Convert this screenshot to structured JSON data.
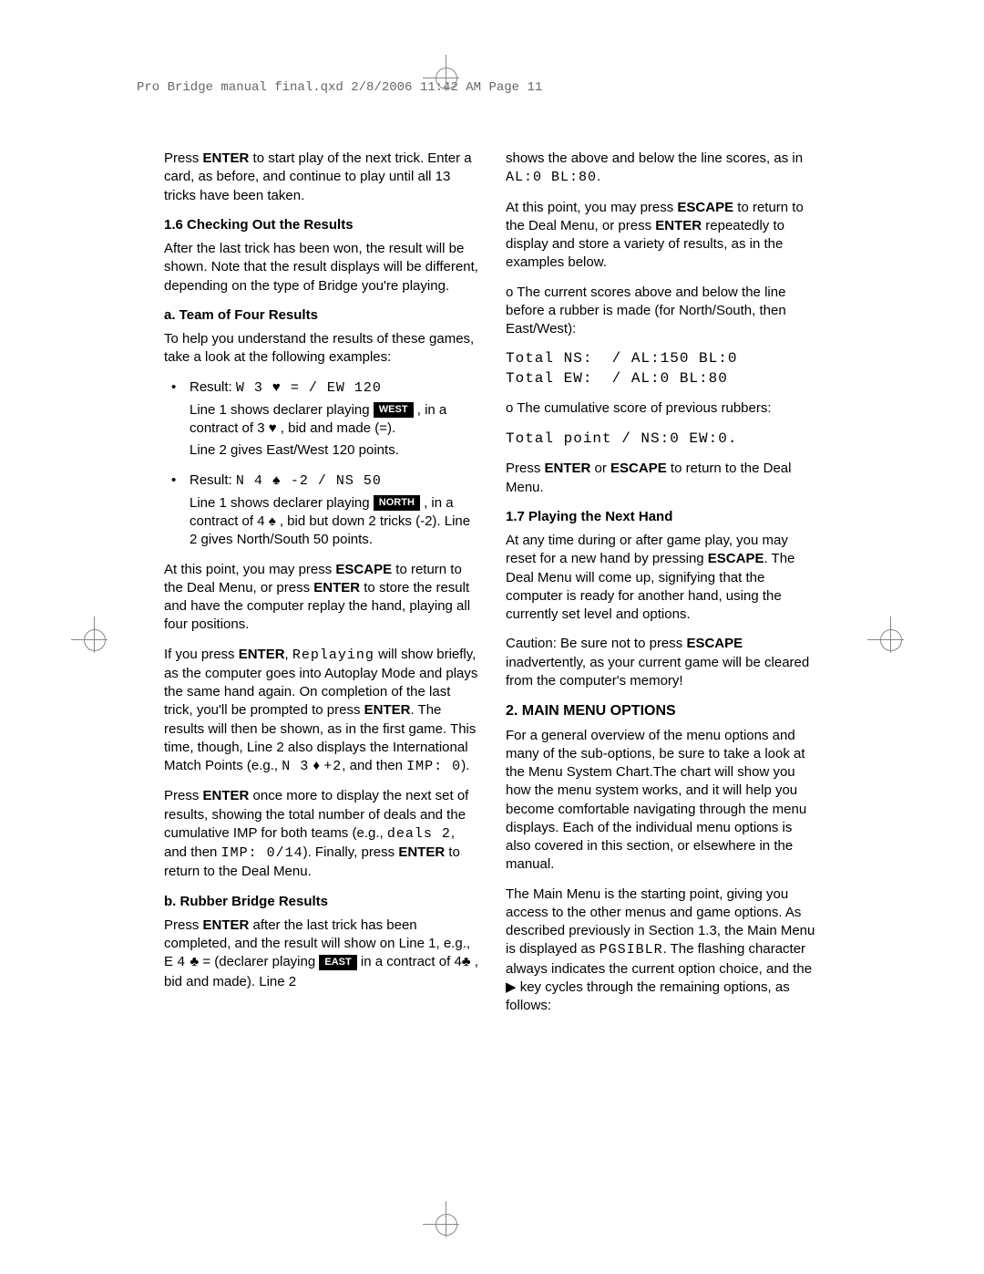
{
  "header": {
    "text": "Pro Bridge manual final.qxd  2/8/2006  11:42 AM  Page 11"
  },
  "left_column": {
    "intro": {
      "pre1": "Press ",
      "key1": "ENTER",
      "post1": " to start play of the next trick. Enter a card, as before, and continue to play until all 13 tricks have been taken."
    },
    "sec16_title": "1.6 Checking Out the Results",
    "sec16_p": "After the last trick has been won, the result will be shown. Note that the result displays will be different, depending on the type of Bridge you're playing.",
    "team_title": "a. Team of Four Results",
    "team_p": "To help you understand the results of these games, take a look at the following examples:",
    "bullet1": {
      "label": "Result: ",
      "lcd": "W 3 ♥ = / EW 120",
      "line1a": "Line 1 shows declarer playing ",
      "badge": "WEST",
      "line1b": " , in a contract of 3 ♥ , bid and made (=).",
      "line2": "Line 2 gives East/West 120 points."
    },
    "bullet2": {
      "label": "Result: ",
      "lcd": "N 4 ♠ -2 / NS 50",
      "line1a": "Line 1 shows declarer playing ",
      "badge": "NORTH",
      "line1b": " , in a contract of 4 ♠ , bid but down 2 tricks (-2). Line 2 gives North/South 50 points."
    },
    "p_escape": {
      "a": "At this point, you may press ",
      "k1": "ESCAPE",
      "b": " to return to the Deal Menu, or press ",
      "k2": "ENTER",
      "c": " to store the result and have the computer replay the hand, playing all four positions."
    },
    "p_replay": {
      "a": "If you press ",
      "k1": "ENTER",
      "b": ", ",
      "lcd1": "Replaying",
      "c": " will show briefly, as the computer goes into Autoplay Mode and plays the same hand again. On completion of the last trick, you'll be prompted to press ",
      "k2": "ENTER",
      "d": ". The results will then be shown, as in the first game. This time, though, Line 2 also displays the International Match Points (e.g., ",
      "lcd2": "N  3",
      "e": " ♦ ",
      "lcd3": "+2",
      "f": ", and then ",
      "lcd4": "IMP:  0",
      "g": ")."
    },
    "p_more": {
      "a": "Press ",
      "k1": "ENTER",
      "b": " once more to display the next set of results, showing the total number of deals and the cumulative IMP for both teams (e.g., ",
      "lcd1": "deals  2",
      "c": ", and then ",
      "lcd2": "IMP:  0/14",
      "d": "). Finally, press ",
      "k2": "ENTER",
      "e": " to return to the Deal Menu."
    },
    "rubber_title": "b. Rubber Bridge Results",
    "rubber_p": {
      "a": "Press ",
      "k1": "ENTER",
      "b": " after the last trick has been completed, and the result will show on Line 1, e.g., E  ",
      "lcd1": "4",
      "c": "  ♣  = (declarer playing ",
      "badge": "EAST",
      "d": " in a contract of 4♣  , bid and made). Line 2"
    }
  },
  "right_column": {
    "top_p": {
      "a": "shows the above and below the line scores, as in ",
      "lcd": "AL:0  BL:80",
      "b": "."
    },
    "p2": {
      "a": "At this point, you may press ",
      "k1": "ESCAPE",
      "b": " to return to the Deal Menu, or press ",
      "k2": "ENTER",
      "c": " repeatedly to display and store a variety of results, as in the examples below."
    },
    "p3": "o The current scores above and below the line before a rubber is made (for North/South, then East/West):",
    "lcd_block1": "Total NS:  / AL:150 BL:0\nTotal EW:  / AL:0 BL:80",
    "p4": "o The cumulative score of previous rubbers:",
    "lcd_block2": "Total point / NS:0 EW:0.",
    "p5": {
      "a": "Press ",
      "k1": "ENTER",
      "b": " or ",
      "k2": "ESCAPE",
      "c": " to return to the Deal Menu."
    },
    "sec17_title": "1.7 Playing the Next Hand",
    "sec17_p": {
      "a": "At any time during or after game play, you may reset for a new hand by pressing ",
      "k1": "ESCAPE",
      "b": ". The Deal Menu will come up, signifying that the computer is ready for another hand, using the currently set level and options."
    },
    "caution": {
      "a": "Caution: Be sure not to press ",
      "k1": "ESCAPE",
      "b": " inadvertently, as your current game will be cleared from the computer's memory!"
    },
    "sec2_title": "2. MAIN MENU OPTIONS",
    "sec2_p1": "For a general overview of the menu options and many of the sub-options, be sure to take a look at the Menu System Chart.The chart will show you how the menu system works, and it will help you become comfortable navigating through the menu displays. Each of the individual menu options is also covered in this section, or elsewhere in the manual.",
    "sec2_p2": {
      "a": "The Main Menu is the starting point, giving you access to the other menus and game options. As described previously in Section 1.3, the Main Menu is displayed as ",
      "lcd": "PGSIBLR",
      "b": ". The flashing character always indicates the current option choice, and the ▶ key cycles through the remaining options, as follows:"
    }
  }
}
